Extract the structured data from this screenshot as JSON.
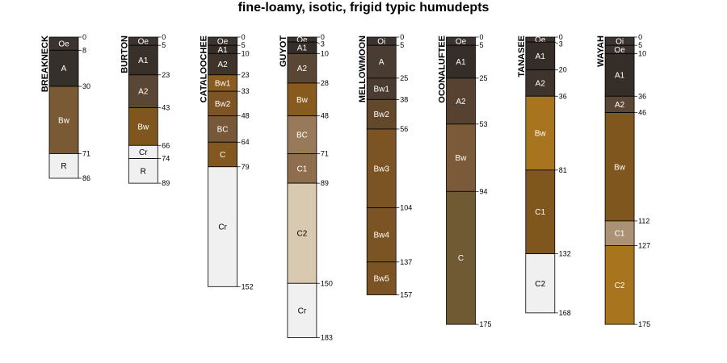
{
  "chart_data": {
    "type": "soil-profile-sketch",
    "title": "fine-loamy, isotic, frigid typic humudepts",
    "depth_unit": "cm",
    "profiles": [
      {
        "name": "BREAKNECK",
        "horizons": [
          {
            "name": "Oe",
            "top": 0,
            "bottom": 8,
            "color": "#3b3330"
          },
          {
            "name": "A",
            "top": 8,
            "bottom": 30,
            "color": "#36302b"
          },
          {
            "name": "Bw",
            "top": 30,
            "bottom": 71,
            "color": "#7a5a34"
          },
          {
            "name": "",
            "top": 71,
            "bottom": 71,
            "color": "#7a5a34"
          },
          {
            "name": "R",
            "top": 71,
            "bottom": 86,
            "color": "#f0f0f0"
          }
        ]
      },
      {
        "name": "BURTON",
        "horizons": [
          {
            "name": "Oe",
            "top": 0,
            "bottom": 5,
            "color": "#3b3330"
          },
          {
            "name": "A1",
            "top": 5,
            "bottom": 23,
            "color": "#3a302a"
          },
          {
            "name": "A2",
            "top": 23,
            "bottom": 43,
            "color": "#5a4634"
          },
          {
            "name": "Bw",
            "top": 43,
            "bottom": 66,
            "color": "#80561f"
          },
          {
            "name": "Cr",
            "top": 66,
            "bottom": 74,
            "color": "#f0f0f0"
          },
          {
            "name": "R",
            "top": 74,
            "bottom": 89,
            "color": "#f0f0f0"
          }
        ]
      },
      {
        "name": "CATALOOCHEE",
        "horizons": [
          {
            "name": "Oe",
            "top": 0,
            "bottom": 5,
            "color": "#3b3330"
          },
          {
            "name": "A1",
            "top": 5,
            "bottom": 10,
            "color": "#342d28"
          },
          {
            "name": "A2",
            "top": 10,
            "bottom": 23,
            "color": "#3e342c"
          },
          {
            "name": "Bw1",
            "top": 23,
            "bottom": 33,
            "color": "#8a5c20"
          },
          {
            "name": "Bw2",
            "top": 33,
            "bottom": 48,
            "color": "#7e5424"
          },
          {
            "name": "BC",
            "top": 48,
            "bottom": 64,
            "color": "#77593a"
          },
          {
            "name": "C",
            "top": 64,
            "bottom": 79,
            "color": "#835720"
          },
          {
            "name": "Cr",
            "top": 79,
            "bottom": 152,
            "color": "#f0f0f0"
          }
        ]
      },
      {
        "name": "GUYOT",
        "horizons": [
          {
            "name": "Oe",
            "top": 0,
            "bottom": 3,
            "color": "#3b3330"
          },
          {
            "name": "A1",
            "top": 3,
            "bottom": 10,
            "color": "#342d28"
          },
          {
            "name": "A2",
            "top": 10,
            "bottom": 28,
            "color": "#5a4634"
          },
          {
            "name": "Bw",
            "top": 28,
            "bottom": 48,
            "color": "#875a1e"
          },
          {
            "name": "BC",
            "top": 48,
            "bottom": 71,
            "color": "#987a5a"
          },
          {
            "name": "C1",
            "top": 71,
            "bottom": 89,
            "color": "#8e6e4c"
          },
          {
            "name": "C2",
            "top": 89,
            "bottom": 150,
            "color": "#d9c9b1"
          },
          {
            "name": "Cr",
            "top": 150,
            "bottom": 183,
            "color": "#f0f0f0"
          }
        ]
      },
      {
        "name": "MELLOWMOON",
        "horizons": [
          {
            "name": "Oi",
            "top": 0,
            "bottom": 5,
            "color": "#3b3330"
          },
          {
            "name": "A",
            "top": 5,
            "bottom": 25,
            "color": "#4a3c30"
          },
          {
            "name": "Bw1",
            "top": 25,
            "bottom": 38,
            "color": "#4a3c30"
          },
          {
            "name": "Bw2",
            "top": 38,
            "bottom": 56,
            "color": "#63482c"
          },
          {
            "name": "Bw3",
            "top": 56,
            "bottom": 104,
            "color": "#7c5424"
          },
          {
            "name": "Bw4",
            "top": 104,
            "bottom": 137,
            "color": "#7c5424"
          },
          {
            "name": "Bw5",
            "top": 137,
            "bottom": 157,
            "color": "#7c5424"
          }
        ]
      },
      {
        "name": "OCONALUFTEE",
        "horizons": [
          {
            "name": "Oe",
            "top": 0,
            "bottom": 5,
            "color": "#3b3330"
          },
          {
            "name": "A1",
            "top": 5,
            "bottom": 25,
            "color": "#342d28"
          },
          {
            "name": "A2",
            "top": 25,
            "bottom": 53,
            "color": "#574130"
          },
          {
            "name": "Bw",
            "top": 53,
            "bottom": 94,
            "color": "#7a5a38"
          },
          {
            "name": "C",
            "top": 94,
            "bottom": 175,
            "color": "#705a34"
          }
        ]
      },
      {
        "name": "TANASEE",
        "horizons": [
          {
            "name": "Oe",
            "top": 0,
            "bottom": 3,
            "color": "#3b3330"
          },
          {
            "name": "A1",
            "top": 3,
            "bottom": 20,
            "color": "#342d28"
          },
          {
            "name": "A2",
            "top": 20,
            "bottom": 36,
            "color": "#3e342c"
          },
          {
            "name": "Bw",
            "top": 36,
            "bottom": 81,
            "color": "#a8741e"
          },
          {
            "name": "C1",
            "top": 81,
            "bottom": 132,
            "color": "#80561f"
          },
          {
            "name": "C2",
            "top": 132,
            "bottom": 168,
            "color": "#f0f0f0"
          }
        ]
      },
      {
        "name": "WAYAH",
        "horizons": [
          {
            "name": "Oi",
            "top": 0,
            "bottom": 5,
            "color": "#3b3330"
          },
          {
            "name": "Oe",
            "top": 5,
            "bottom": 10,
            "color": "#3b3330"
          },
          {
            "name": "A1",
            "top": 10,
            "bottom": 36,
            "color": "#342d28"
          },
          {
            "name": "A2",
            "top": 36,
            "bottom": 46,
            "color": "#5a4634"
          },
          {
            "name": "Bw",
            "top": 46,
            "bottom": 112,
            "color": "#80561f"
          },
          {
            "name": "C1",
            "top": 112,
            "bottom": 127,
            "color": "#ab9275"
          },
          {
            "name": "C2",
            "top": 127,
            "bottom": 175,
            "color": "#a8741e"
          }
        ]
      }
    ]
  }
}
